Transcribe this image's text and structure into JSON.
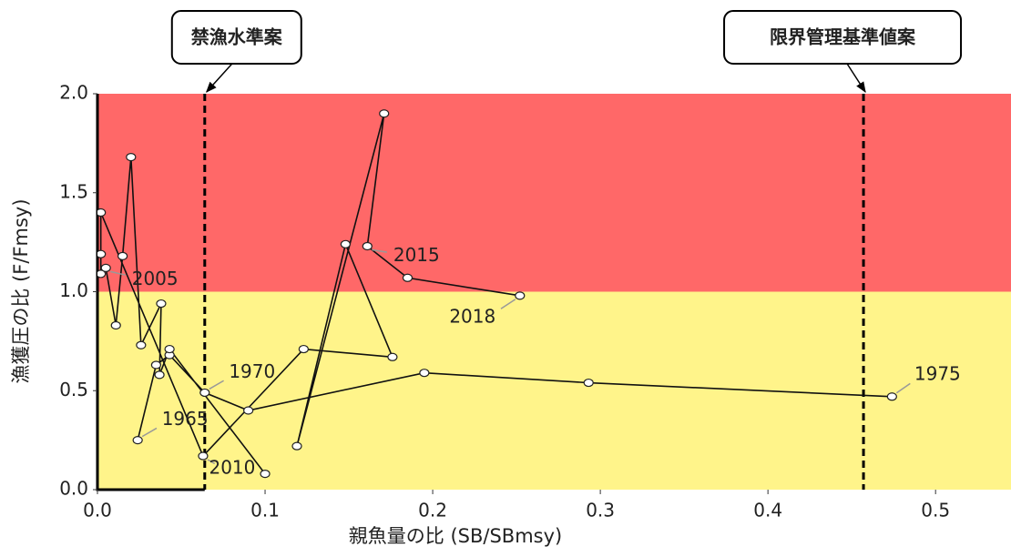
{
  "chart_data": {
    "type": "line",
    "x_label": "親魚量の比 (SB/SBmsy)",
    "y_label": "漁獲圧の比 (F/Fmsy)",
    "xlim": [
      0,
      0.545
    ],
    "ylim": [
      0,
      2
    ],
    "xticks": [
      {
        "value": 0,
        "label": "0.0"
      },
      0.1,
      0.2,
      0.3,
      0.4,
      0.5
    ],
    "yticks": [
      {
        "value": 0,
        "label": "0.0"
      },
      0.5,
      {
        "value": 1,
        "label": "1.0"
      },
      1.5,
      {
        "value": 2,
        "label": "2.0"
      }
    ],
    "zones": [
      {
        "ymin": 1,
        "ymax": 2,
        "color": "#ff6868"
      },
      {
        "ymin": 0,
        "ymax": 1,
        "color": "#fff48a"
      }
    ],
    "reference_lines": [
      {
        "x": 0.064,
        "label": "禁漁水準案"
      },
      {
        "x": 0.457,
        "label": "限界管理基準値案"
      }
    ],
    "series": [
      {
        "color": "#111111",
        "x": [
          0.024,
          0.035,
          0.043,
          0.064,
          0.09,
          0.195,
          0.293,
          0.474,
          null,
          0.1,
          0.043,
          0.037,
          0.038,
          0.026,
          0.02,
          0.015,
          0.011,
          0.005,
          0.002,
          0.002,
          0.002,
          0.063,
          0.123,
          0.176,
          0.148,
          0.119,
          0.171,
          0.161,
          0.185,
          0.252
        ],
        "values": [
          0.25,
          0.63,
          0.68,
          0.49,
          0.4,
          0.59,
          0.54,
          0.47,
          null,
          0.08,
          0.71,
          0.58,
          0.94,
          0.73,
          1.68,
          1.18,
          0.83,
          1.12,
          1.09,
          1.19,
          1.4,
          0.17,
          0.71,
          0.67,
          1.24,
          0.22,
          1.9,
          1.23,
          1.07,
          0.98
        ]
      }
    ],
    "annotations": [
      {
        "text": "1965",
        "x": 0.024,
        "y": 0.25
      },
      {
        "text": "1970",
        "x": 0.064,
        "y": 0.49
      },
      {
        "text": "1975",
        "x": 0.474,
        "y": 0.47
      },
      {
        "text": "2005",
        "x": 0.005,
        "y": 1.12
      },
      {
        "text": "2010",
        "x": 0.063,
        "y": 0.17
      },
      {
        "text": "2015",
        "x": 0.161,
        "y": 1.23
      },
      {
        "text": "2018",
        "x": 0.252,
        "y": 0.98
      }
    ]
  }
}
